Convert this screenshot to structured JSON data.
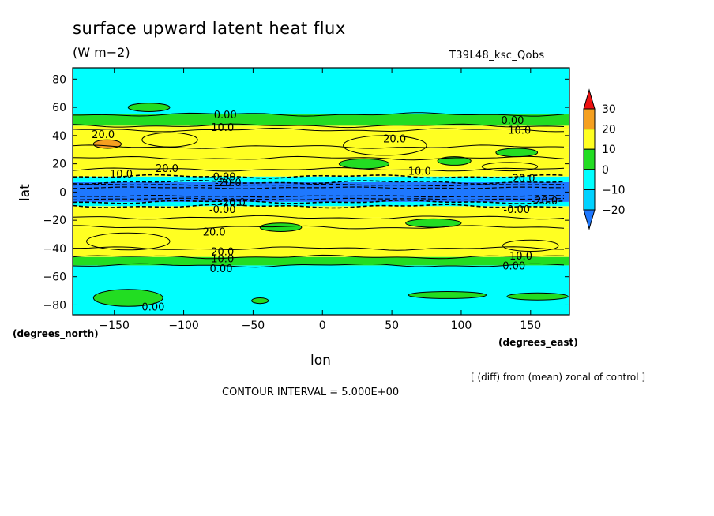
{
  "header": {
    "title": "surface upward latent heat flux",
    "units": "(W m−2)",
    "run_name": "T39L48_ksc_Qobs"
  },
  "axes": {
    "x_label": "lon",
    "y_label": "lat",
    "x_unit": "(degrees_east)",
    "y_unit": "(degrees_north)"
  },
  "footer": {
    "diff_note": "[ (diff) from (mean) zonal of control ]",
    "contour_interval": "CONTOUR INTERVAL = 5.000E+00"
  },
  "chart_data": {
    "type": "contour",
    "xlim": [
      -180,
      178
    ],
    "ylim": [
      -87,
      88
    ],
    "x_ticks": [
      -150,
      -100,
      -50,
      0,
      50,
      100,
      150
    ],
    "y_ticks": [
      -80,
      -60,
      -40,
      -20,
      0,
      20,
      40,
      60,
      80
    ],
    "x_tick_labels": [
      "−150",
      "−100",
      "−50",
      "0",
      "50",
      "100",
      "150"
    ],
    "y_tick_labels": [
      "−80",
      "−60",
      "−40",
      "−20",
      "0",
      "20",
      "40",
      "60",
      "80"
    ],
    "colorbar": {
      "levels": [
        -20,
        -10,
        0,
        10,
        20,
        30
      ],
      "labels": [
        "−20",
        "−10",
        "0",
        "10",
        "20",
        "30"
      ],
      "colors": [
        "#1e78ff",
        "#00d2ff",
        "#00ffff",
        "#22dd22",
        "#ffff22",
        "#f5a020",
        "#ee1111"
      ]
    },
    "bands": [
      {
        "lat_from": -87,
        "lat_to": -52,
        "value": -5
      },
      {
        "lat_from": -52,
        "lat_to": -46,
        "value": 5
      },
      {
        "lat_from": -46,
        "lat_to": -40,
        "value": 12
      },
      {
        "lat_from": -40,
        "lat_to": -25,
        "value": 17
      },
      {
        "lat_from": -25,
        "lat_to": -18,
        "value": 12
      },
      {
        "lat_from": -18,
        "lat_to": -10,
        "value": 17
      },
      {
        "lat_from": -10,
        "lat_to": -7,
        "value": -5
      },
      {
        "lat_from": -7,
        "lat_to": 7,
        "value": -25
      },
      {
        "lat_from": 7,
        "lat_to": 11,
        "value": -5
      },
      {
        "lat_from": 11,
        "lat_to": 16,
        "value": 12
      },
      {
        "lat_from": 16,
        "lat_to": 24,
        "value": 17
      },
      {
        "lat_from": 24,
        "lat_to": 32,
        "value": 12
      },
      {
        "lat_from": 32,
        "lat_to": 44,
        "value": 17
      },
      {
        "lat_from": 44,
        "lat_to": 47,
        "value": 12
      },
      {
        "lat_from": 47,
        "lat_to": 55,
        "value": 5
      },
      {
        "lat_from": 55,
        "lat_to": 88,
        "value": -5
      }
    ],
    "patches": [
      {
        "lon": -155,
        "lat": 34,
        "rlon": 10,
        "rlat": 3,
        "value": 25
      },
      {
        "lon": 45,
        "lat": 33,
        "rlon": 30,
        "rlat": 7,
        "value": 12
      },
      {
        "lon": -110,
        "lat": 37,
        "rlon": 20,
        "rlat": 5,
        "value": 12
      },
      {
        "lon": 30,
        "lat": 20,
        "rlon": 18,
        "rlat": 3.5,
        "value": 5
      },
      {
        "lon": 95,
        "lat": 22,
        "rlon": 12,
        "rlat": 3,
        "value": 5
      },
      {
        "lon": 140,
        "lat": 28,
        "rlon": 15,
        "rlat": 3,
        "value": 5
      },
      {
        "lon": 135,
        "lat": 18,
        "rlon": 20,
        "rlat": 3,
        "value": 12
      },
      {
        "lon": -125,
        "lat": 60,
        "rlon": 15,
        "rlat": 3,
        "value": 5
      },
      {
        "lon": -30,
        "lat": -25,
        "rlon": 15,
        "rlat": 3,
        "value": 5
      },
      {
        "lon": 80,
        "lat": -22,
        "rlon": 20,
        "rlat": 3,
        "value": 5
      },
      {
        "lon": 150,
        "lat": -38,
        "rlon": 20,
        "rlat": 4,
        "value": 12
      },
      {
        "lon": -140,
        "lat": -35,
        "rlon": 30,
        "rlat": 6,
        "value": 12
      },
      {
        "lon": -140,
        "lat": -75,
        "rlon": 25,
        "rlat": 6,
        "value": 5
      },
      {
        "lon": -45,
        "lat": -77,
        "rlon": 6,
        "rlat": 2,
        "value": 5
      },
      {
        "lon": 90,
        "lat": -73,
        "rlon": 28,
        "rlat": 2.5,
        "value": 5
      },
      {
        "lon": 155,
        "lat": -74,
        "rlon": 22,
        "rlat": 2.5,
        "value": 5
      }
    ],
    "contour_labels": [
      {
        "text": "0.00",
        "lon": -70,
        "lat": 55
      },
      {
        "text": "10.0",
        "lon": -72,
        "lat": 46
      },
      {
        "text": "20.0",
        "lon": -158,
        "lat": 41
      },
      {
        "text": "0.00",
        "lon": 137,
        "lat": 51
      },
      {
        "text": "10.0",
        "lon": 142,
        "lat": 44
      },
      {
        "text": "20.0",
        "lon": 52,
        "lat": 38
      },
      {
        "text": "10.0",
        "lon": -145,
        "lat": 13
      },
      {
        "text": "20.0",
        "lon": -112,
        "lat": 17
      },
      {
        "text": "-0.00",
        "lon": -72,
        "lat": 11
      },
      {
        "text": "-20.0",
        "lon": -68,
        "lat": 7
      },
      {
        "text": "10.0",
        "lon": 70,
        "lat": 15
      },
      {
        "text": "20.0",
        "lon": 145,
        "lat": 10
      },
      {
        "text": "-20.0",
        "lon": -65,
        "lat": -7
      },
      {
        "text": "-0.00",
        "lon": -72,
        "lat": -12
      },
      {
        "text": "-20.0",
        "lon": 160,
        "lat": -6
      },
      {
        "text": "-0.00",
        "lon": 140,
        "lat": -12
      },
      {
        "text": "20.0",
        "lon": -78,
        "lat": -28
      },
      {
        "text": "20.0",
        "lon": -72,
        "lat": -42
      },
      {
        "text": "10.0",
        "lon": -72,
        "lat": -47
      },
      {
        "text": "0.00",
        "lon": -73,
        "lat": -54
      },
      {
        "text": "10.0",
        "lon": 143,
        "lat": -45
      },
      {
        "text": "0.00",
        "lon": 138,
        "lat": -52
      },
      {
        "text": "0.00",
        "lon": -122,
        "lat": -81
      }
    ]
  }
}
